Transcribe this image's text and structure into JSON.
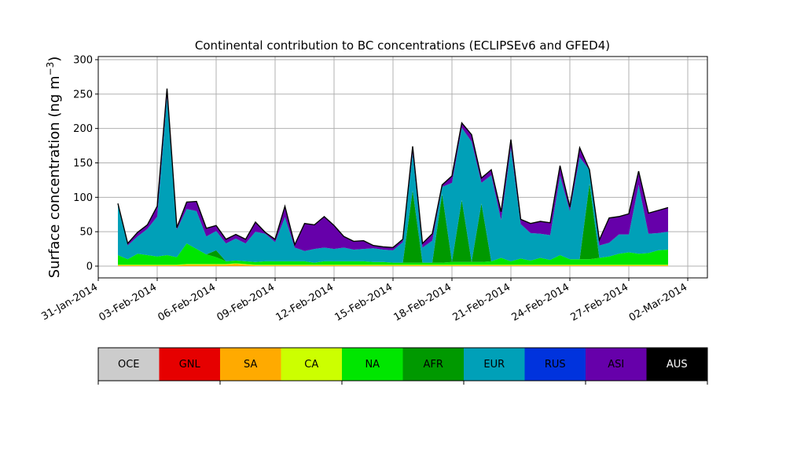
{
  "chart_data": {
    "type": "area",
    "stacked": true,
    "title": "Continental contribution to BC concentrations (ECLIPSEv6 and GFED4)",
    "ylabel_main": "Surface concentration (ng m",
    "ylabel_sup": "−3",
    "ylabel_close": ")",
    "ylim": [
      0,
      300
    ],
    "yticks": [
      "0",
      "50",
      "100",
      "150",
      "200",
      "250",
      "300"
    ],
    "xlim": [
      "2014-01-31",
      "2014-03-03"
    ],
    "xticks": [
      "31-Jan-2014",
      "03-Feb-2014",
      "06-Feb-2014",
      "09-Feb-2014",
      "12-Feb-2014",
      "15-Feb-2014",
      "18-Feb-2014",
      "21-Feb-2014",
      "24-Feb-2014",
      "27-Feb-2014",
      "02-Mar-2014"
    ],
    "grid": true,
    "legend_placement": "colorbar-below",
    "x": [
      "2014-02-01",
      "2014-02-01 12:00",
      "2014-02-02",
      "2014-02-02 12:00",
      "2014-02-03",
      "2014-02-03 12:00",
      "2014-02-04",
      "2014-02-04 12:00",
      "2014-02-05",
      "2014-02-05 12:00",
      "2014-02-06",
      "2014-02-06 12:00",
      "2014-02-07",
      "2014-02-07 12:00",
      "2014-02-08",
      "2014-02-08 12:00",
      "2014-02-09",
      "2014-02-09 12:00",
      "2014-02-10",
      "2014-02-10 12:00",
      "2014-02-11",
      "2014-02-11 12:00",
      "2014-02-12",
      "2014-02-12 12:00",
      "2014-02-13",
      "2014-02-13 12:00",
      "2014-02-14",
      "2014-02-14 12:00",
      "2014-02-15",
      "2014-02-15 12:00",
      "2014-02-16",
      "2014-02-16 12:00",
      "2014-02-17",
      "2014-02-17 12:00",
      "2014-02-18",
      "2014-02-18 12:00",
      "2014-02-19",
      "2014-02-19 12:00",
      "2014-02-20",
      "2014-02-20 12:00",
      "2014-02-21",
      "2014-02-21 12:00",
      "2014-02-22",
      "2014-02-22 12:00",
      "2014-02-23",
      "2014-02-23 12:00",
      "2014-02-24",
      "2014-02-24 12:00",
      "2014-02-25",
      "2014-02-25 12:00",
      "2014-02-26",
      "2014-02-26 12:00",
      "2014-02-27",
      "2014-02-27 12:00",
      "2014-02-28",
      "2014-02-28 12:00",
      "2014-03-01"
    ],
    "series": [
      {
        "name": "OCE",
        "color": "#cccccc",
        "values": [
          0,
          0,
          0,
          0,
          0,
          0,
          0,
          0,
          0,
          0,
          0,
          0,
          0,
          0,
          0,
          0,
          0,
          0,
          0,
          0,
          0,
          0,
          0,
          0,
          0,
          0,
          0,
          0,
          0,
          0,
          0,
          0,
          0,
          0,
          0,
          0,
          0,
          0,
          0,
          0,
          0,
          0,
          0,
          0,
          0,
          0,
          0,
          0,
          0,
          0,
          0,
          0,
          0,
          0,
          0,
          0,
          0
        ]
      },
      {
        "name": "GNL",
        "color": "#e60000",
        "values": [
          0,
          0,
          0,
          0,
          0,
          0,
          0,
          0,
          0,
          0,
          0,
          0,
          0,
          0,
          0,
          0,
          0,
          0,
          0,
          0,
          0,
          0,
          0,
          0,
          0,
          0,
          0,
          0,
          0,
          0,
          0,
          0,
          0,
          0,
          0,
          0,
          0,
          0,
          0,
          0,
          0,
          0,
          0,
          0,
          0,
          0,
          0,
          0,
          0,
          0,
          0,
          0,
          0,
          0,
          0,
          0,
          0
        ]
      },
      {
        "name": "SA",
        "color": "#ffaa00",
        "values": [
          1,
          1,
          1,
          1,
          1,
          1,
          1,
          2,
          2,
          2,
          2,
          2,
          3,
          2,
          1,
          1,
          1,
          1,
          1,
          1,
          1,
          1,
          1,
          1,
          1,
          1,
          1,
          1,
          1,
          1,
          1,
          1,
          1,
          1,
          1,
          1,
          1,
          1,
          1,
          1,
          1,
          1,
          1,
          1,
          1,
          1,
          1,
          1,
          1,
          1,
          1,
          1,
          1,
          1,
          1,
          1,
          1
        ]
      },
      {
        "name": "CA",
        "color": "#ccff00",
        "values": [
          1,
          1,
          1,
          1,
          1,
          1,
          1,
          1,
          1,
          1,
          1,
          1,
          1,
          1,
          1,
          1,
          1,
          1,
          1,
          1,
          1,
          1,
          1,
          1,
          1,
          1,
          1,
          1,
          1,
          1,
          1,
          1,
          1,
          1,
          1,
          1,
          1,
          1,
          1,
          1,
          1,
          1,
          1,
          1,
          1,
          1,
          1,
          1,
          1,
          1,
          1,
          1,
          1,
          1,
          1,
          1,
          1
        ]
      },
      {
        "name": "NA",
        "color": "#00e600",
        "values": [
          14,
          8,
          16,
          14,
          12,
          14,
          11,
          30,
          22,
          14,
          10,
          4,
          4,
          4,
          4,
          5,
          5,
          5,
          5,
          5,
          3,
          5,
          5,
          5,
          5,
          5,
          4,
          4,
          3,
          3,
          3,
          3,
          3,
          3,
          4,
          4,
          4,
          4,
          5,
          10,
          5,
          9,
          6,
          10,
          7,
          14,
          8,
          8,
          8,
          10,
          12,
          16,
          18,
          16,
          17,
          21,
          22
        ]
      },
      {
        "name": "AFR",
        "color": "#009900",
        "values": [
          0,
          0,
          0,
          0,
          0,
          0,
          0,
          0,
          0,
          0,
          10,
          0,
          0,
          0,
          0,
          0,
          0,
          0,
          0,
          0,
          0,
          0,
          0,
          0,
          0,
          0,
          0,
          0,
          0,
          0,
          105,
          0,
          0,
          100,
          0,
          90,
          0,
          85,
          0,
          0,
          0,
          0,
          0,
          0,
          0,
          0,
          0,
          0,
          110,
          0,
          0,
          0,
          0,
          0,
          0,
          0,
          0
        ]
      },
      {
        "name": "EUR",
        "color": "#00a0b8",
        "values": [
          75,
          20,
          25,
          38,
          58,
          230,
          40,
          50,
          55,
          26,
          28,
          26,
          32,
          26,
          44,
          40,
          28,
          64,
          20,
          15,
          20,
          20,
          18,
          20,
          17,
          18,
          20,
          18,
          18,
          30,
          54,
          22,
          32,
          10,
          115,
          105,
          175,
          30,
          125,
          55,
          165,
          50,
          40,
          35,
          36,
          115,
          70,
          148,
          20,
          18,
          20,
          28,
          26,
          100,
          28,
          25,
          26
        ]
      },
      {
        "name": "RUS",
        "color": "#0033dd",
        "values": [
          0,
          0,
          0,
          0,
          0,
          0,
          0,
          0,
          0,
          0,
          0,
          0,
          0,
          0,
          0,
          0,
          0,
          0,
          0,
          0,
          0,
          0,
          0,
          0,
          0,
          0,
          0,
          0,
          0,
          0,
          0,
          0,
          0,
          0,
          0,
          0,
          0,
          0,
          0,
          0,
          0,
          0,
          0,
          0,
          0,
          0,
          0,
          0,
          0,
          0,
          0,
          0,
          0,
          0,
          0,
          0,
          0
        ]
      },
      {
        "name": "ASI",
        "color": "#6600aa",
        "values": [
          0,
          3,
          6,
          6,
          15,
          12,
          3,
          10,
          14,
          12,
          8,
          6,
          6,
          6,
          14,
          2,
          4,
          16,
          4,
          40,
          35,
          45,
          34,
          16,
          12,
          12,
          4,
          4,
          4,
          4,
          10,
          6,
          10,
          3,
          10,
          7,
          10,
          7,
          8,
          12,
          12,
          7,
          14,
          18,
          18,
          15,
          6,
          14,
          0,
          8,
          36,
          26,
          30,
          20,
          30,
          33,
          35
        ]
      },
      {
        "name": "AUS",
        "color": "#000000",
        "values": [
          0,
          0,
          0,
          0,
          0,
          0,
          0,
          0,
          0,
          0,
          0,
          0,
          0,
          0,
          0,
          0,
          0,
          0,
          0,
          0,
          0,
          0,
          0,
          0,
          0,
          0,
          0,
          0,
          0,
          0,
          0,
          0,
          0,
          0,
          0,
          0,
          0,
          0,
          0,
          0,
          0,
          0,
          0,
          0,
          0,
          0,
          0,
          0,
          0,
          0,
          0,
          0,
          0,
          0,
          0,
          0,
          0
        ]
      }
    ]
  }
}
